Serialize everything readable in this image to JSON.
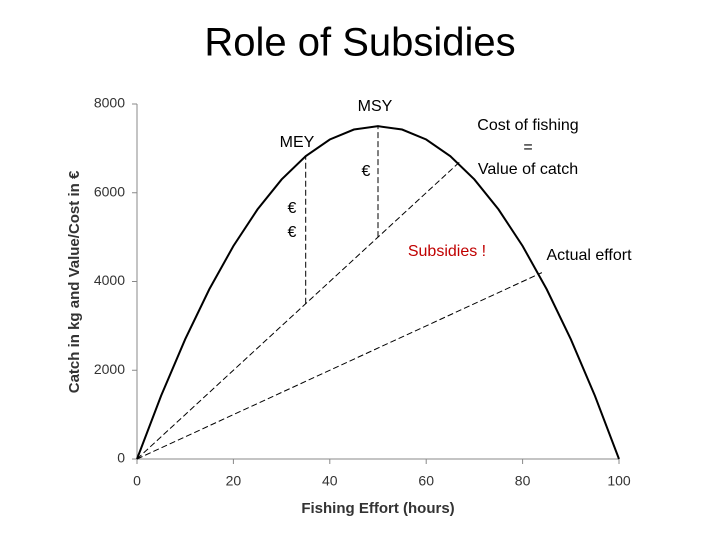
{
  "chart_data": {
    "type": "line",
    "title": "Role of Subsidies",
    "x_label": "Fishing Effort (hours)",
    "y_label": "Catch in kg and Value/Cost in €",
    "xlim": [
      0,
      100
    ],
    "ylim": [
      0,
      8000
    ],
    "xticks": [
      0,
      20,
      40,
      60,
      80,
      100
    ],
    "yticks": [
      0,
      2000,
      4000,
      6000,
      8000
    ],
    "series": [
      {
        "color": "#000000",
        "dash": false,
        "x": [
          0,
          5,
          10,
          15,
          20,
          25,
          30,
          35,
          40,
          45,
          50,
          55,
          60,
          65,
          70,
          75,
          80,
          85,
          90,
          95,
          100
        ],
        "values": [
          0,
          1425,
          2700,
          3825,
          4800,
          5625,
          6300,
          6825,
          7200,
          7425,
          7500,
          7425,
          7200,
          6825,
          6300,
          5625,
          4800,
          3825,
          2700,
          1425,
          0
        ]
      },
      {
        "color": "#000000",
        "dash": true,
        "x": [
          0,
          67
        ],
        "values": [
          0,
          6700
        ]
      },
      {
        "color": "#000000",
        "dash": true,
        "x": [
          0,
          84
        ],
        "values": [
          0,
          4200
        ]
      },
      {
        "color": "#000000",
        "dash": true,
        "x": [
          35,
          35
        ],
        "values": [
          3500,
          6825
        ]
      },
      {
        "color": "#000000",
        "dash": true,
        "x": [
          50,
          50
        ],
        "values": [
          5000,
          7500
        ]
      }
    ],
    "annotations": [
      {
        "text": "MSY",
        "color": "#000000"
      },
      {
        "text": "MEY",
        "color": "#000000"
      },
      {
        "text": "€",
        "color": "#000000"
      },
      {
        "text": "€",
        "color": "#000000"
      },
      {
        "text": "€",
        "color": "#000000"
      },
      {
        "text": "Cost of fishing",
        "color": "#000000"
      },
      {
        "text": "=",
        "color": "#000000"
      },
      {
        "text": "Value of catch",
        "color": "#000000"
      },
      {
        "text": "Subsidies !",
        "color": "#c00000"
      },
      {
        "text": "Actual effort",
        "color": "#000000"
      }
    ]
  }
}
